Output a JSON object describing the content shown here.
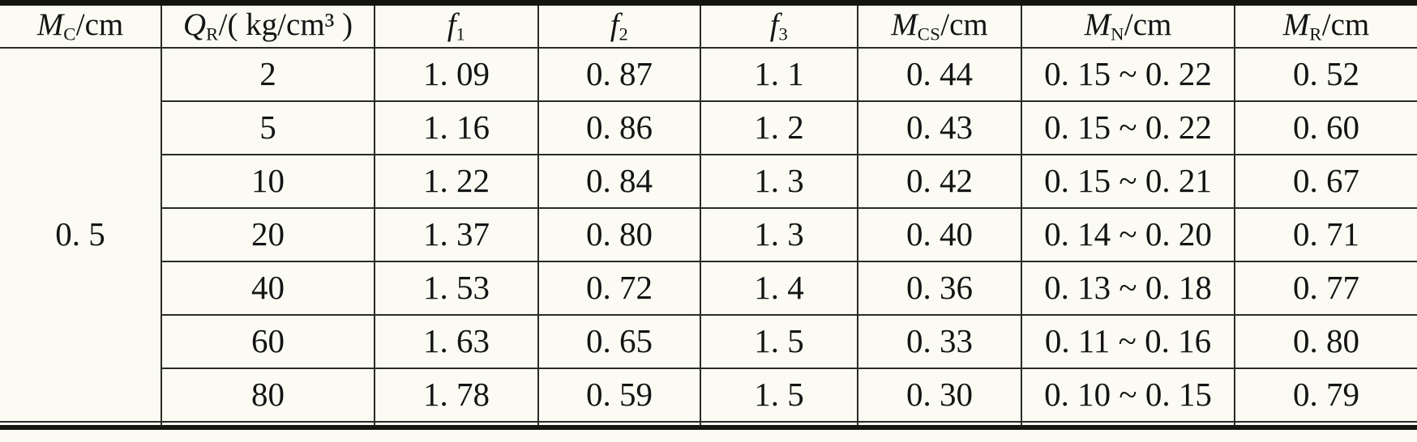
{
  "table": {
    "headers": [
      {
        "sym": "M",
        "sub": "C",
        "rest": "/cm"
      },
      {
        "sym": "Q",
        "sub": "R",
        "rest": "/( kg/cm³ )"
      },
      {
        "sym": "f",
        "sub": "1",
        "rest": ""
      },
      {
        "sym": "f",
        "sub": "2",
        "rest": ""
      },
      {
        "sym": "f",
        "sub": "3",
        "rest": ""
      },
      {
        "sym": "M",
        "sub": "CS",
        "rest": "/cm"
      },
      {
        "sym": "M",
        "sub": "N",
        "rest": "/cm"
      },
      {
        "sym": "M",
        "sub": "R",
        "rest": "/cm"
      }
    ],
    "mc_value": "0. 5",
    "rows": [
      {
        "cells": [
          "2",
          "1. 09",
          "0. 87",
          "1. 1",
          "0. 44",
          "0. 15 ~ 0. 22",
          "0. 52"
        ]
      },
      {
        "cells": [
          "5",
          "1. 16",
          "0. 86",
          "1. 2",
          "0. 43",
          "0. 15 ~ 0. 22",
          "0. 60"
        ]
      },
      {
        "cells": [
          "10",
          "1. 22",
          "0. 84",
          "1. 3",
          "0. 42",
          "0. 15 ~ 0. 21",
          "0. 67"
        ]
      },
      {
        "cells": [
          "20",
          "1. 37",
          "0. 80",
          "1. 3",
          "0. 40",
          "0. 14 ~ 0. 20",
          "0. 71"
        ]
      },
      {
        "cells": [
          "40",
          "1. 53",
          "0. 72",
          "1. 4",
          "0. 36",
          "0. 13 ~ 0. 18",
          "0. 77"
        ]
      },
      {
        "cells": [
          "60",
          "1. 63",
          "0. 65",
          "1. 5",
          "0. 33",
          "0. 11 ~ 0. 16",
          "0. 80"
        ]
      },
      {
        "cells": [
          "80",
          "1. 78",
          "0. 59",
          "1. 5",
          "0. 30",
          "0. 10 ~ 0. 15",
          "0. 79"
        ]
      }
    ],
    "colors": {
      "thick_rule": "#15150f",
      "thin_rule": "#2b2b26",
      "text": "#141414",
      "background": "#fbfbf4"
    }
  }
}
